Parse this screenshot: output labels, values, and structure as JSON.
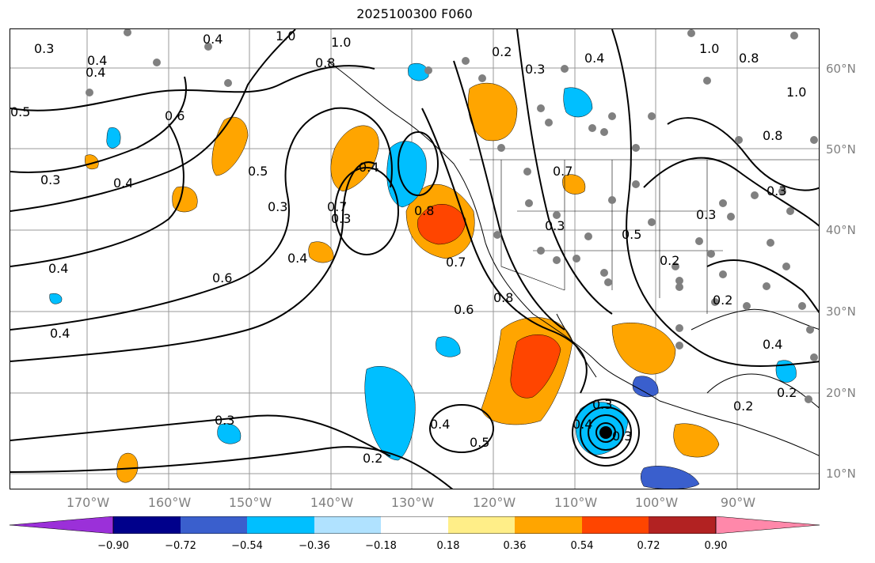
{
  "title": "2025100300 F060",
  "lat_labels": [
    "60°N",
    "50°N",
    "40°N",
    "30°N",
    "20°N",
    "10°N"
  ],
  "lon_labels": [
    "170°W",
    "160°W",
    "150°W",
    "140°W",
    "130°W",
    "120°W",
    "110°W",
    "100°W",
    "90°W"
  ],
  "colorbar": {
    "ticks": [
      "−0.90",
      "−0.72",
      "−0.54",
      "−0.36",
      "−0.18",
      "0.18",
      "0.36",
      "0.54",
      "0.72",
      "0.90"
    ],
    "colors": [
      "#9b30d9",
      "#00008b",
      "#3a5fcd",
      "#00bfff",
      "#b0e2ff",
      "#ffffff",
      "#ffee88",
      "#ffa500",
      "#ff4500",
      "#b22222",
      "#ff88aa"
    ]
  },
  "contour_labels": [
    "1.0",
    "1.0",
    "0.8",
    "0.6",
    "0.4",
    "0.5",
    "0.3",
    "0.3",
    "0.4",
    "0.4",
    "0.5",
    "0.3",
    "0.7",
    "0.4",
    "0.8",
    "0.6",
    "0.6",
    "0.7",
    "0.8",
    "0.4",
    "0.2",
    "0.3",
    "0.5",
    "0.4",
    "0.3",
    "0.4",
    "0.3",
    "0.5",
    "0.2",
    "0.3",
    "0.3",
    "0.2",
    "0.4",
    "0.8",
    "1.0",
    "0.8",
    "0.3",
    "0.2",
    "0.3",
    "0.4",
    "0.2",
    "0.4",
    "0.3",
    "0.2",
    "1.0",
    "0.4",
    "0.4",
    "0.7"
  ],
  "colors": {
    "positive_mid": "#ffa500",
    "positive_high": "#ff4500",
    "negative_mid": "#00bfff",
    "negative_high": "#3a5fcd",
    "dots": "#808080"
  }
}
